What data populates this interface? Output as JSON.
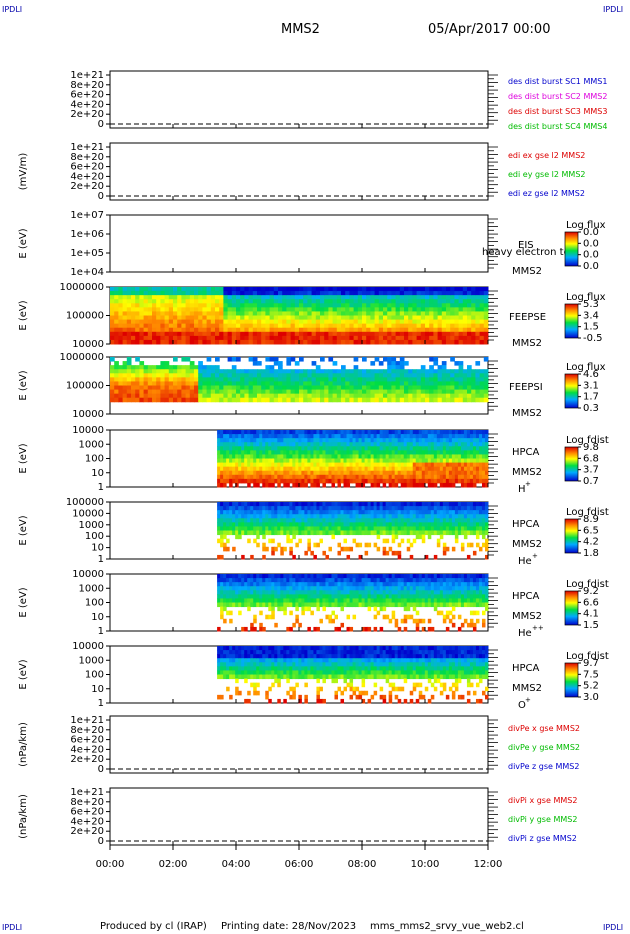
{
  "header": {
    "corner_label": "IPDLI",
    "title": "MMS2",
    "datetime": "05/Apr/2017 00:00"
  },
  "footer": {
    "produced_by": "Produced by cl (IRAP)",
    "printing_date": "Printing date: 28/Nov/2023",
    "filename": "mms_mms2_srvy_vue_web2.cl"
  },
  "colors": {
    "red": "#dd0000",
    "magenta": "#dd00dd",
    "green": "#00bb00",
    "blue": "#0000cc",
    "dash": "#000000"
  },
  "chart_data": {
    "type": "multi-panel time series / spectrogram stack",
    "x_ticks": [
      "00:00",
      "02:00",
      "04:00",
      "06:00",
      "08:00",
      "10:00",
      "12:00"
    ],
    "x_range_hours": [
      0,
      12
    ],
    "panels": [
      {
        "id": "p1",
        "type": "line",
        "ylabel": "",
        "y_ticks": [
          "1e+21",
          "8e+20",
          "6e+20",
          "4e+20",
          "2e+20",
          "0"
        ],
        "dashed_zero": true,
        "legend": [
          {
            "text": "des dist burst SC1 MMS1",
            "color": "blue"
          },
          {
            "text": "des dist burst SC2 MMS2",
            "color": "magenta"
          },
          {
            "text": "des dist burst SC3 MMS3",
            "color": "red"
          },
          {
            "text": "des dist burst SC4 MMS4",
            "color": "green"
          }
        ]
      },
      {
        "id": "p2",
        "type": "line",
        "ylabel": "(mV/m)",
        "y_ticks": [
          "1e+21",
          "8e+20",
          "6e+20",
          "4e+20",
          "2e+20",
          "0"
        ],
        "dashed_zero": true,
        "legend": [
          {
            "text": "edi ex gse l2 MMS2",
            "color": "red"
          },
          {
            "text": "edi ey gse l2 MMS2",
            "color": "green"
          },
          {
            "text": "edi ez gse l2 MMS2",
            "color": "blue"
          }
        ]
      },
      {
        "id": "p3",
        "type": "spectrogram",
        "ylabel": "E (eV)",
        "y_ticks": [
          "1e+07",
          "1e+06",
          "1e+05",
          "1e+04"
        ],
        "label": [
          "EIS",
          "",
          "MMS2"
        ],
        "overlay": "heavy electron to",
        "cbar_title": "Log flux",
        "cbar_ticks": [
          "0.0",
          "0.0",
          "0.0",
          "0.0"
        ],
        "data": "none"
      },
      {
        "id": "p4",
        "type": "spectrogram",
        "ylabel": "E (eV)",
        "y_ticks": [
          "1000000",
          "100000",
          "10000"
        ],
        "label": [
          "FEEPSE",
          "",
          "MMS2"
        ],
        "cbar_title": "Log flux",
        "cbar_ticks": [
          "5.3",
          "3.4",
          "1.5",
          "-0.5"
        ],
        "start_hour": 0
      },
      {
        "id": "p5",
        "type": "spectrogram",
        "ylabel": "E (eV)",
        "y_ticks": [
          "1000000",
          "100000",
          "10000"
        ],
        "label": [
          "FEEPSI",
          "",
          "MMS2"
        ],
        "cbar_title": "Log flux",
        "cbar_ticks": [
          "4.6",
          "3.1",
          "1.7",
          "0.3"
        ],
        "start_hour": 0
      },
      {
        "id": "p6",
        "type": "spectrogram",
        "ylabel": "E (eV)",
        "y_ticks": [
          "10000",
          "1000",
          "100",
          "10",
          "1"
        ],
        "label": [
          "HPCA",
          "MMS2",
          "H",
          "+"
        ],
        "cbar_title": "Log fdist",
        "cbar_ticks": [
          "9.8",
          "6.8",
          "3.7",
          "0.7"
        ],
        "start_hour": 3.4
      },
      {
        "id": "p7",
        "type": "spectrogram",
        "ylabel": "E (eV)",
        "y_ticks": [
          "100000",
          "10000",
          "1000",
          "100",
          "10",
          "1"
        ],
        "label": [
          "HPCA",
          "MMS2",
          "He",
          "+"
        ],
        "cbar_title": "Log fdist",
        "cbar_ticks": [
          "8.9",
          "6.5",
          "4.2",
          "1.8"
        ],
        "start_hour": 3.4
      },
      {
        "id": "p8",
        "type": "spectrogram",
        "ylabel": "E (eV)",
        "y_ticks": [
          "10000",
          "1000",
          "100",
          "10",
          "1"
        ],
        "label": [
          "HPCA",
          "MMS2",
          "He",
          "++"
        ],
        "cbar_title": "Log fdist",
        "cbar_ticks": [
          "9.2",
          "6.6",
          "4.1",
          "1.5"
        ],
        "start_hour": 3.4
      },
      {
        "id": "p9",
        "type": "spectrogram",
        "ylabel": "E (eV)",
        "y_ticks": [
          "10000",
          "1000",
          "100",
          "10",
          "1"
        ],
        "label": [
          "HPCA",
          "MMS2",
          "O",
          "+"
        ],
        "cbar_title": "Log fdist",
        "cbar_ticks": [
          "9.7",
          "7.5",
          "5.2",
          "3.0"
        ],
        "start_hour": 3.4
      },
      {
        "id": "p10",
        "type": "line",
        "ylabel": "(nPa/km)",
        "y_ticks": [
          "1e+21",
          "8e+20",
          "6e+20",
          "4e+20",
          "2e+20",
          "0"
        ],
        "dashed_zero": true,
        "legend": [
          {
            "text": "divPe x gse MMS2",
            "color": "red"
          },
          {
            "text": "divPe y gse MMS2",
            "color": "green"
          },
          {
            "text": "divPe z gse MMS2",
            "color": "blue"
          }
        ]
      },
      {
        "id": "p11",
        "type": "line",
        "ylabel": "(nPa/km)",
        "y_ticks": [
          "1e+21",
          "8e+20",
          "6e+20",
          "4e+20",
          "2e+20",
          "0"
        ],
        "dashed_zero": true,
        "legend": [
          {
            "text": "divPi x gse MMS2",
            "color": "red"
          },
          {
            "text": "divPi y gse MMS2",
            "color": "green"
          },
          {
            "text": "divPi z gse MMS2",
            "color": "blue"
          }
        ]
      }
    ]
  }
}
